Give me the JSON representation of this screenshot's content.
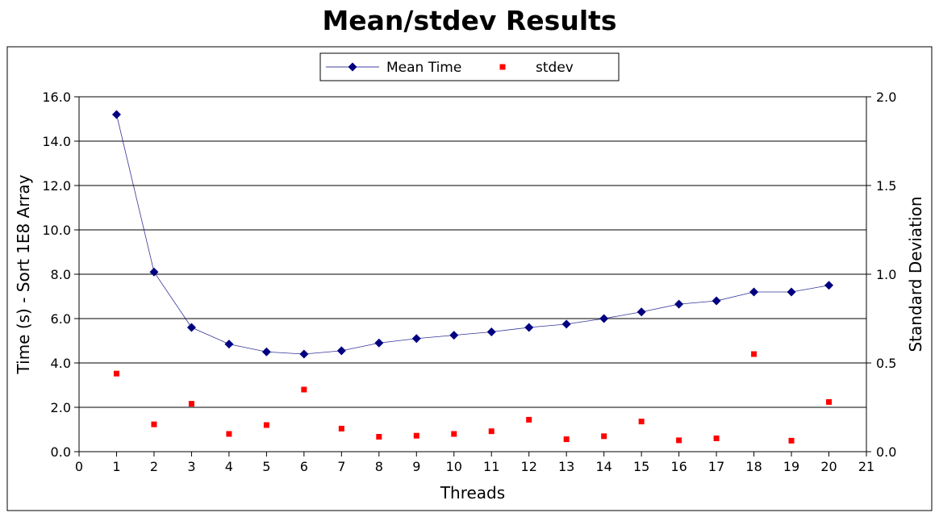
{
  "chart_data": {
    "type": "line",
    "title": "Mean/stdev Results",
    "xlabel": "Threads",
    "ylabel": "Time (s) - Sort 1E8 Array",
    "y2label": "Standard Deviation",
    "xlim": [
      0,
      21
    ],
    "ylim": [
      0,
      16
    ],
    "y2lim": [
      0,
      2
    ],
    "x_ticks": [
      "0",
      "1",
      "2",
      "3",
      "4",
      "5",
      "6",
      "7",
      "8",
      "9",
      "10",
      "11",
      "12",
      "13",
      "14",
      "15",
      "16",
      "17",
      "18",
      "19",
      "20",
      "21"
    ],
    "y_ticks": [
      "0.0",
      "2.0",
      "4.0",
      "6.0",
      "8.0",
      "10.0",
      "12.0",
      "14.0",
      "16.0"
    ],
    "y2_ticks": [
      "0.0",
      "0.5",
      "1.0",
      "1.5",
      "2.0"
    ],
    "grid": "horizontal",
    "legend_position": "top-center",
    "x": [
      1,
      2,
      3,
      4,
      5,
      6,
      7,
      8,
      9,
      10,
      11,
      12,
      13,
      14,
      15,
      16,
      17,
      18,
      19,
      20
    ],
    "series": [
      {
        "name": "Mean Time",
        "axis": "left",
        "type": "line",
        "marker": "diamond",
        "color": "#000080",
        "values": [
          15.2,
          8.1,
          5.6,
          4.85,
          4.5,
          4.4,
          4.55,
          4.9,
          5.1,
          5.25,
          5.4,
          5.6,
          5.75,
          6.0,
          6.3,
          6.65,
          6.8,
          7.2,
          7.2,
          7.5
        ]
      },
      {
        "name": "stdev",
        "axis": "right",
        "type": "scatter",
        "marker": "square",
        "color": "#ff0000",
        "values": [
          0.44,
          0.154,
          0.27,
          0.1,
          0.15,
          0.35,
          0.13,
          0.084,
          0.09,
          0.1,
          0.115,
          0.18,
          0.07,
          0.087,
          0.17,
          0.064,
          0.075,
          0.55,
          0.062,
          0.28
        ]
      }
    ]
  }
}
